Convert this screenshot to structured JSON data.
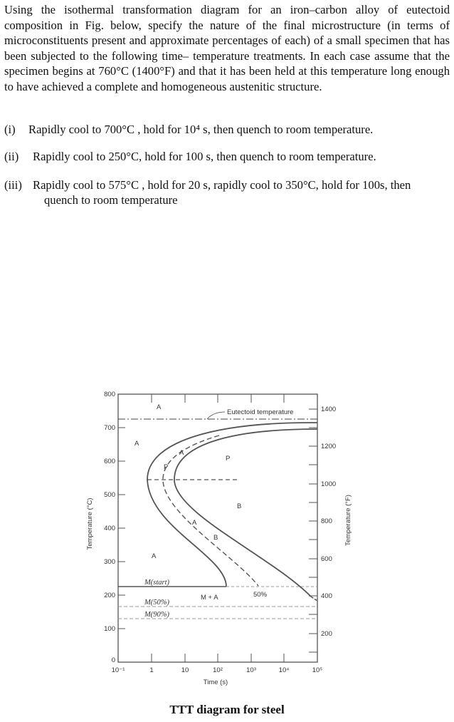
{
  "question": {
    "intro": "Using the isothermal transformation diagram for an iron–carbon alloy of eutectoid composition in Fig. below, specify the nature of the final microstructure (in terms of microconstituents present and approximate percentages of each) of a small specimen that has been subjected to the following time– temperature treatments. In each case assume that the specimen begins at 760°C (1400°F) and that it has been held at this temperature long enough to have achieved a complete and homogeneous austenitic structure.",
    "items": [
      {
        "num": "(i)",
        "text": "Rapidly cool to 700°C , hold for  10⁴ s, then quench to room temperature."
      },
      {
        "num": "(ii)",
        "text": "Rapidly cool to 250°C, hold for 100 s, then quench to room temperature."
      },
      {
        "num": "(iii)",
        "text": "Rapidly cool to 575°C , hold for 20 s, rapidly cool to 350°C, hold for 100s, then",
        "cont": "quench to room temperature"
      }
    ]
  },
  "diagram": {
    "caption": "TTT diagram for steel",
    "y_left_label": "Temperature (°C)",
    "y_right_label": "Temperature (°F)",
    "x_label": "Time (s)",
    "y_left_ticks": [
      "800",
      "700",
      "600",
      "500",
      "400",
      "300",
      "200",
      "100",
      "0"
    ],
    "y_right_ticks": [
      "1400",
      "1200",
      "1000",
      "800",
      "600",
      "400",
      "200"
    ],
    "x_ticks": [
      "10⁻¹",
      "1",
      "10",
      "10²",
      "10³",
      "10⁴",
      "10⁵"
    ],
    "x_scale": "log",
    "labels": {
      "eutectoid": "Eutectoid temperature",
      "a_top": "A",
      "a_left": "A",
      "p_region": "P",
      "b_region": "B",
      "a_low": "A",
      "p_curve": "P",
      "a_curve_upper": "A",
      "a_curve_lower": "A",
      "b_curve": "B",
      "m_start": "M(start)",
      "m_plus_a": "M + A",
      "fifty": "50%",
      "m50": "M(50%)",
      "m90": "M(90%)"
    }
  }
}
